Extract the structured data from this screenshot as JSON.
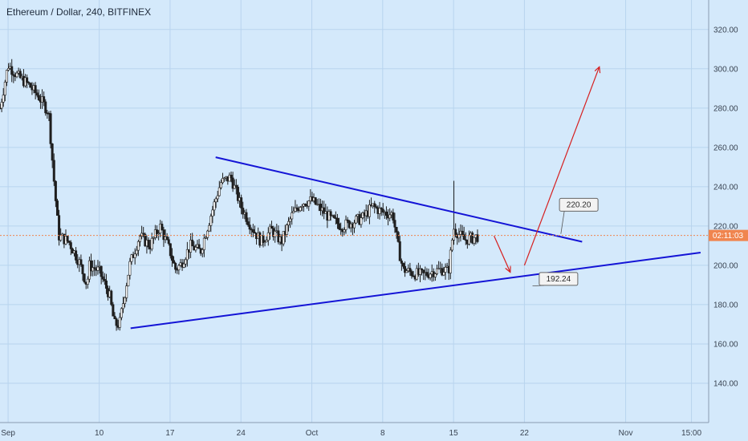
{
  "header": {
    "title": "Ethereum / Dollar, 240, BITFINEX"
  },
  "price_tag": {
    "label": "02:11:03",
    "value": 215.2,
    "color": "#f0854f"
  },
  "colors": {
    "background": "#d4e9fb",
    "trendline": "#1414d6",
    "arrow": "#d61f1f",
    "candle": "#1e1e1e",
    "price_line": "#f0854f",
    "grid": "#b8d4ee"
  },
  "callouts": [
    {
      "label": "220.20",
      "value": 220.2
    },
    {
      "label": "192.24",
      "value": 192.24
    }
  ],
  "chart_data": {
    "type": "candlestick",
    "ylim": [
      120,
      335
    ],
    "y_ticks": [
      "140.00",
      "160.00",
      "180.00",
      "200.00",
      "220.00",
      "240.00",
      "260.00",
      "280.00",
      "300.00",
      "320.00"
    ],
    "y_tick_values": [
      140,
      160,
      180,
      200,
      220,
      240,
      260,
      280,
      300,
      320
    ],
    "x_ticks": [
      "Sep",
      "10",
      "17",
      "24",
      "Oct",
      "8",
      "15",
      "22",
      "Nov",
      "15:00"
    ],
    "x_tick_days": [
      1,
      10,
      17,
      24,
      31,
      38,
      45,
      52,
      62,
      68.5
    ],
    "xlim_days": [
      0.2,
      70.2
    ],
    "series": [
      {
        "points": [
          [
            0.2,
            280
          ],
          [
            1,
            302
          ],
          [
            2,
            296
          ],
          [
            3,
            292
          ],
          [
            4,
            286
          ],
          [
            5,
            278
          ],
          [
            5.5,
            245
          ],
          [
            6,
            215
          ],
          [
            7,
            212
          ],
          [
            8,
            202
          ],
          [
            8.8,
            190
          ],
          [
            9,
            200
          ],
          [
            10,
            197
          ],
          [
            11,
            185
          ],
          [
            11.5,
            170
          ],
          [
            12,
            170
          ],
          [
            13,
            200
          ],
          [
            14,
            215
          ],
          [
            15,
            210
          ],
          [
            16,
            220
          ],
          [
            17,
            207
          ],
          [
            17.5,
            198
          ],
          [
            18,
            200
          ],
          [
            19,
            210
          ],
          [
            20,
            207
          ],
          [
            21,
            225
          ],
          [
            22,
            242
          ],
          [
            23,
            245
          ],
          [
            24,
            230
          ],
          [
            25,
            220
          ],
          [
            26,
            212
          ],
          [
            27,
            218
          ],
          [
            28,
            212
          ],
          [
            29,
            225
          ],
          [
            30,
            232
          ],
          [
            31,
            233
          ],
          [
            32,
            228
          ],
          [
            33,
            223
          ],
          [
            34,
            220
          ],
          [
            35,
            222
          ],
          [
            36,
            224
          ],
          [
            37,
            230
          ],
          [
            38,
            227
          ],
          [
            39,
            226
          ],
          [
            39.5,
            210
          ],
          [
            40,
            198
          ],
          [
            41,
            196
          ],
          [
            42,
            195
          ],
          [
            43,
            197
          ],
          [
            44,
            198
          ],
          [
            44.5,
            197
          ],
          [
            45,
            219
          ],
          [
            46,
            213
          ],
          [
            47,
            214
          ],
          [
            47.5,
            215
          ]
        ]
      }
    ],
    "lines": [
      {
        "kind": "resistance",
        "from": [
          21.5,
          255
        ],
        "to": [
          57.7,
          212
        ]
      },
      {
        "kind": "support",
        "from": [
          13.1,
          168
        ],
        "to": [
          69.4,
          206.5
        ]
      }
    ],
    "arrows": [
      {
        "from": [
          49,
          215
        ],
        "to": [
          50.6,
          196.5
        ]
      },
      {
        "from": [
          52,
          200
        ],
        "to": [
          59.4,
          301
        ]
      }
    ]
  }
}
